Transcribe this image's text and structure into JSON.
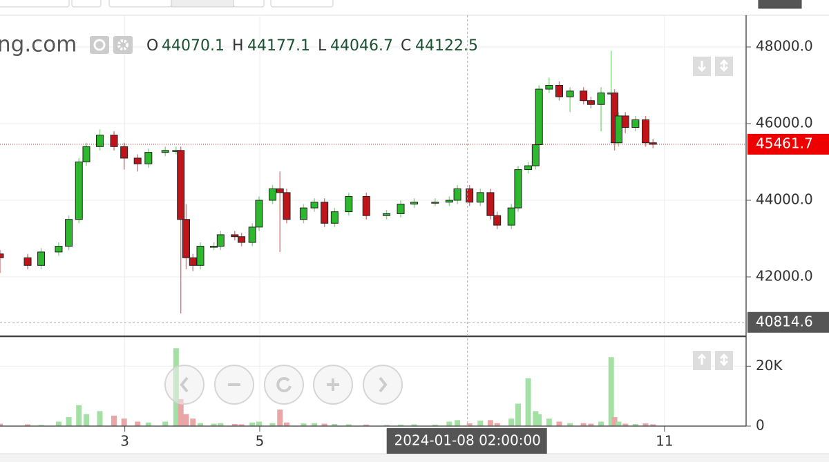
{
  "header": {
    "site": "ng.com",
    "o_label": "O",
    "o_value": "44070.1",
    "h_label": "H",
    "h_value": "44177.1",
    "l_label": "L",
    "l_value": "44046.7",
    "c_label": "C",
    "c_value": "44122.5"
  },
  "chart_data": [
    {
      "type": "candlestick",
      "x": [
        1.15,
        1.56,
        1.76,
        2.02,
        2.17,
        2.32,
        2.43,
        2.63,
        2.84,
        2.99,
        3.19,
        3.35,
        3.6,
        3.76,
        3.83,
        3.91,
        4.01,
        4.12,
        4.32,
        4.42,
        4.63,
        4.73,
        4.89,
        4.99,
        5.19,
        5.3,
        5.4,
        5.65,
        5.81,
        5.96,
        6.11,
        6.32,
        6.58,
        6.88,
        7.09,
        7.29,
        7.6,
        7.81,
        7.93,
        8.11,
        8.27,
        8.42,
        8.52,
        8.73,
        8.83,
        8.98,
        9.09,
        9.14,
        9.29,
        9.44,
        9.6,
        9.8,
        9.91,
        10.06,
        10.21,
        10.26,
        10.32,
        10.42,
        10.57,
        10.72,
        10.83
      ],
      "open": [
        42600,
        42500,
        42300,
        42650,
        42800,
        43500,
        45000,
        45400,
        45700,
        45400,
        45100,
        44950,
        45250,
        45300,
        45300,
        43500,
        42500,
        42300,
        42800,
        42800,
        43100,
        43050,
        42900,
        43300,
        44000,
        44300,
        44200,
        43500,
        43800,
        43950,
        43400,
        43700,
        44100,
        43600,
        43650,
        43900,
        43950,
        43950,
        44000,
        44300,
        43950,
        44200,
        43600,
        43350,
        43800,
        44800,
        44900,
        45450,
        46900,
        47000,
        46700,
        46850,
        46600,
        46500,
        46800,
        46800,
        45500,
        46200,
        45900,
        46100,
        45500
      ],
      "high": [
        42700,
        42600,
        42750,
        42900,
        43600,
        45100,
        45500,
        45850,
        45800,
        45500,
        45200,
        45350,
        45400,
        45400,
        45400,
        43900,
        42600,
        42900,
        42900,
        43200,
        43200,
        43150,
        43400,
        44100,
        44400,
        44750,
        44300,
        43900,
        44050,
        44050,
        43800,
        44200,
        44200,
        43750,
        44000,
        44050,
        44050,
        44100,
        44400,
        44400,
        44300,
        44300,
        43700,
        43900,
        44900,
        45000,
        45550,
        47000,
        47200,
        47100,
        46950,
        46950,
        46700,
        46950,
        47900,
        46900,
        46300,
        46300,
        46200,
        46200,
        45600
      ],
      "low": [
        42100,
        42200,
        42200,
        42550,
        42700,
        43400,
        44900,
        45300,
        45300,
        44800,
        44750,
        44850,
        45150,
        45200,
        41050,
        42200,
        42150,
        42200,
        42700,
        42700,
        42950,
        42800,
        42800,
        43200,
        43900,
        42650,
        43400,
        43400,
        43700,
        43300,
        43300,
        43600,
        43500,
        43500,
        43550,
        43800,
        43850,
        43850,
        43900,
        43850,
        43850,
        43500,
        43250,
        43250,
        43700,
        44700,
        44800,
        45350,
        46800,
        46600,
        46300,
        46500,
        46400,
        45800,
        46700,
        45300,
        45400,
        45750,
        45800,
        45400,
        45360
      ],
      "close": [
        42500,
        42300,
        42650,
        42800,
        43500,
        45000,
        45400,
        45700,
        45400,
        45100,
        44950,
        45250,
        45300,
        45300,
        43500,
        42500,
        42300,
        42800,
        42800,
        43100,
        43050,
        42900,
        43300,
        44000,
        44300,
        44200,
        43500,
        43800,
        43950,
        43400,
        43700,
        44100,
        43600,
        43650,
        43900,
        43950,
        43950,
        44000,
        44300,
        43950,
        44200,
        43600,
        43350,
        43800,
        44800,
        44900,
        45450,
        46900,
        47000,
        46700,
        46850,
        46600,
        46500,
        46800,
        46800,
        45500,
        46200,
        45900,
        46100,
        45500,
        45460
      ],
      "up_color": "#2db82d",
      "down_color": "#c0141b",
      "xlim": [
        1.15,
        12.21
      ],
      "xticks": [
        3,
        5,
        11
      ],
      "ylim": [
        40468,
        48829
      ],
      "yticks": [
        {
          "value": 42000,
          "label": "42000.0"
        },
        {
          "value": 44000,
          "label": "44000.0"
        },
        {
          "value": 46000,
          "label": "46000.0"
        },
        {
          "value": 48000,
          "label": "48000.0"
        }
      ],
      "grid": true,
      "last_price": {
        "value": 45461.7,
        "label": "45461.7"
      },
      "crosshair": {
        "x": 8.08,
        "x_label": "2024-01-08 02:00:00",
        "y": 40814.6,
        "y_label": "40814.6"
      }
    },
    {
      "type": "bar",
      "x": [
        1.15,
        1.56,
        1.76,
        2.02,
        2.17,
        2.32,
        2.43,
        2.63,
        2.84,
        2.99,
        3.19,
        3.35,
        3.6,
        3.76,
        3.83,
        3.91,
        4.01,
        4.12,
        4.32,
        4.42,
        4.63,
        4.73,
        4.89,
        4.99,
        5.19,
        5.3,
        5.4,
        5.65,
        5.81,
        5.96,
        6.11,
        6.32,
        6.58,
        6.88,
        7.09,
        7.29,
        7.6,
        7.81,
        7.93,
        8.11,
        8.27,
        8.42,
        8.52,
        8.73,
        8.83,
        8.98,
        9.09,
        9.14,
        9.29,
        9.44,
        9.6,
        9.8,
        9.91,
        10.06,
        10.21,
        10.26,
        10.32,
        10.42,
        10.57,
        10.72,
        10.83
      ],
      "values": [
        800,
        600,
        400,
        1500,
        3000,
        7000,
        4000,
        5000,
        3500,
        2500,
        1500,
        1200,
        1500,
        26000,
        9000,
        4000,
        2500,
        1000,
        800,
        1000,
        700,
        600,
        1200,
        1500,
        1000,
        5500,
        1200,
        900,
        1000,
        800,
        700,
        600,
        500,
        400,
        500,
        600,
        500,
        1500,
        2000,
        900,
        1800,
        2000,
        1000,
        2500,
        7500,
        16000,
        5000,
        4000,
        2500,
        1500,
        1000,
        1000,
        800,
        1500,
        23000,
        3000,
        1500,
        800,
        700,
        900,
        600
      ],
      "up_color": "#a3e0a3",
      "down_color": "#e8a6a6",
      "xlim": [
        1.15,
        12.21
      ],
      "xticks": [
        3,
        5,
        11
      ],
      "ylim": [
        0,
        29750
      ],
      "yticks": [
        0,
        {
          "value": 20000,
          "label": "20K"
        }
      ],
      "grid": true
    }
  ]
}
